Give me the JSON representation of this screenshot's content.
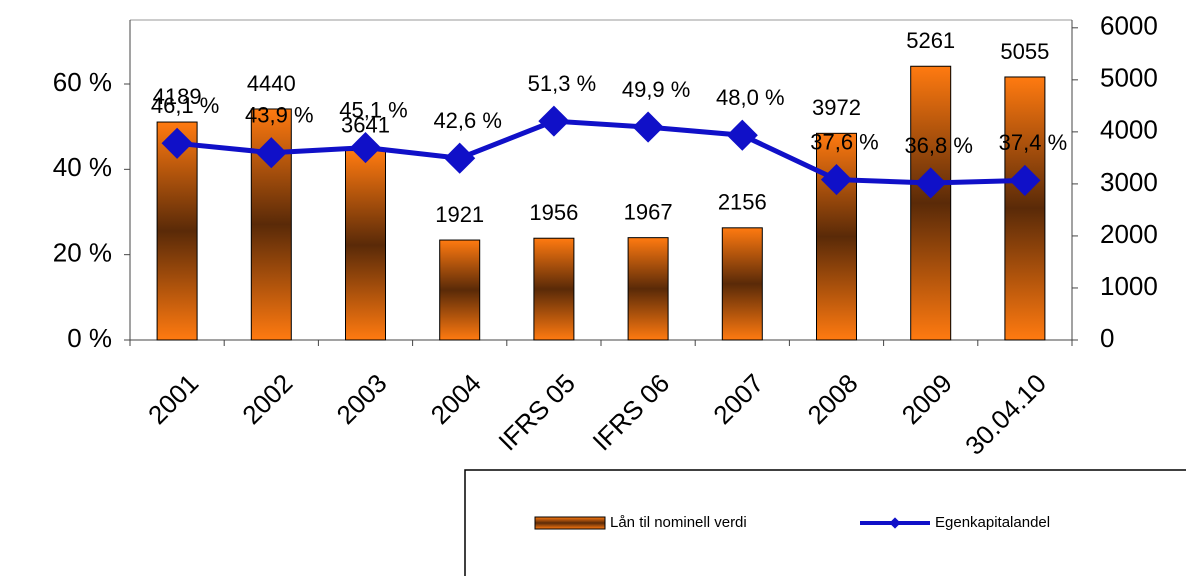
{
  "chart_data": {
    "type": "bar_line",
    "categories": [
      "2001",
      "2002",
      "2003",
      "2004",
      "IFRS 05",
      "IFRS 06",
      "2007",
      "2008",
      "2009",
      "30.04.10"
    ],
    "series": [
      {
        "name": "Lån til nominell verdi",
        "type": "bar",
        "axis": "y2",
        "color": "#ff7a10",
        "values": [
          4189,
          4440,
          3641,
          1921,
          1956,
          1967,
          2156,
          3972,
          5261,
          5055
        ]
      },
      {
        "name": "Egenkapitalandel",
        "type": "line",
        "axis": "y",
        "color": "#1010c8",
        "values": [
          46.1,
          43.9,
          45.1,
          42.6,
          51.3,
          49.9,
          48.0,
          37.6,
          36.8,
          37.4
        ],
        "value_labels": [
          "46,1 %",
          "43,9 %",
          "45,1 %",
          "42,6 %",
          "51,3 %",
          "49,9 %",
          "48,0 %",
          "37,6 %",
          "36,8 %",
          "37,4 %"
        ]
      }
    ],
    "ylim": [
      0,
      75
    ],
    "yticks": [
      {
        "value": 0,
        "label": "0 %"
      },
      {
        "value": 20,
        "label": "20 %"
      },
      {
        "value": 40,
        "label": "40 %"
      },
      {
        "value": 60,
        "label": "60 %"
      }
    ],
    "y2lim": [
      0,
      6150
    ],
    "y2ticks": [
      0,
      1000,
      2000,
      3000,
      4000,
      5000,
      6000
    ],
    "legend": "bottom-right"
  }
}
